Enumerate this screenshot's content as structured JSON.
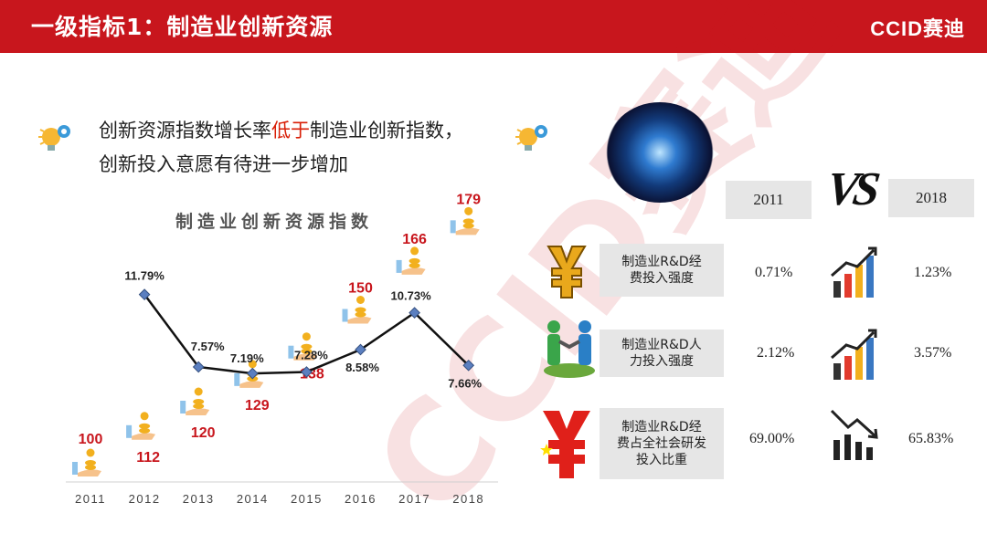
{
  "header": {
    "title": "一级指标1：制造业创新资源",
    "logo": "CCID赛迪"
  },
  "watermark": "CCID赛迪",
  "headline": {
    "line1_pre": "创新资源指数增长率",
    "line1_highlight": "低于",
    "line1_post": "制造业创新指数，",
    "line2": "创新投入意愿有待进一步增加"
  },
  "chart_data": {
    "type": "line",
    "title": "制造业创新资源指数",
    "categories": [
      "2011",
      "2012",
      "2013",
      "2014",
      "2015",
      "2016",
      "2017",
      "2018"
    ],
    "index_values": [
      100,
      112,
      120,
      129,
      138,
      150,
      166,
      179
    ],
    "growth_rate": {
      "x": [
        "2012",
        "2013",
        "2014",
        "2015",
        "2016",
        "2017",
        "2018"
      ],
      "values": [
        11.79,
        7.57,
        7.19,
        7.28,
        8.58,
        10.73,
        7.66
      ],
      "labels": [
        "11.79%",
        "7.57%",
        "7.19%",
        "7.28%",
        "8.58%",
        "10.73%",
        "7.66%"
      ]
    },
    "index_color": "#c8161d",
    "line_color": "#111111",
    "marker_color": "#5b7fc0"
  },
  "comparison": {
    "year_left": "2011",
    "year_right": "2018",
    "vs": "VS",
    "rows": [
      {
        "label": "制造业R&D经费投入强度",
        "left": "0.71%",
        "right": "1.23%",
        "trend": "up-bars-icon",
        "symbol": "yen-gold-icon"
      },
      {
        "label": "制造业R&D人力投入强度",
        "left": "2.12%",
        "right": "3.57%",
        "trend": "up-bars-icon",
        "symbol": "handshake-icon"
      },
      {
        "label": "制造业R&D经费占全社会研发投入比重",
        "left": "69.00%",
        "right": "65.83%",
        "trend": "down-bars-icon",
        "symbol": "yen-red-flag-icon"
      }
    ]
  }
}
